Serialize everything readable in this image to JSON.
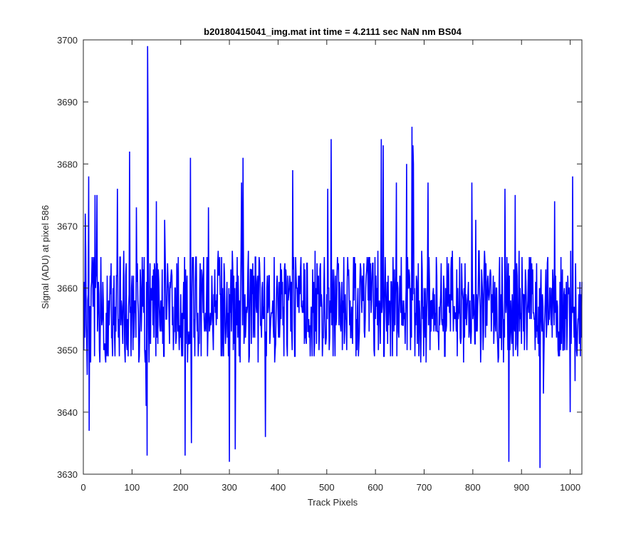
{
  "chart_data": {
    "type": "line",
    "title": "b20180415041_img.mat int time = 4.2111 sec  NaN nm BS04",
    "xlabel": "Track Pixels",
    "ylabel": "Signal (ADU) at pixel 586",
    "xlim": [
      0,
      1024
    ],
    "ylim": [
      3630,
      3700
    ],
    "xticks": [
      0,
      100,
      200,
      300,
      400,
      500,
      600,
      700,
      800,
      900,
      1000
    ],
    "yticks": [
      3630,
      3640,
      3650,
      3660,
      3670,
      3680,
      3690,
      3700
    ],
    "grid": false,
    "legend": "none",
    "line_color": "#0000ff",
    "series": [
      {
        "x_start": 1,
        "x_step": 1,
        "count": 1024,
        "mean": 3657,
        "spread": 5.5,
        "noise_seed": 586,
        "spikes": [
          {
            "x": 4,
            "y": 3672
          },
          {
            "x": 8,
            "y": 3646
          },
          {
            "x": 11,
            "y": 3678
          },
          {
            "x": 12,
            "y": 3637
          },
          {
            "x": 24,
            "y": 3675
          },
          {
            "x": 28,
            "y": 3675
          },
          {
            "x": 70,
            "y": 3676
          },
          {
            "x": 95,
            "y": 3682
          },
          {
            "x": 109,
            "y": 3673
          },
          {
            "x": 129,
            "y": 3641
          },
          {
            "x": 131,
            "y": 3633
          },
          {
            "x": 132,
            "y": 3699
          },
          {
            "x": 133,
            "y": 3685
          },
          {
            "x": 150,
            "y": 3674
          },
          {
            "x": 167,
            "y": 3671
          },
          {
            "x": 209,
            "y": 3633
          },
          {
            "x": 220,
            "y": 3681
          },
          {
            "x": 222,
            "y": 3635
          },
          {
            "x": 257,
            "y": 3673
          },
          {
            "x": 300,
            "y": 3632
          },
          {
            "x": 312,
            "y": 3634
          },
          {
            "x": 325,
            "y": 3677
          },
          {
            "x": 328,
            "y": 3681
          },
          {
            "x": 374,
            "y": 3636
          },
          {
            "x": 430,
            "y": 3679
          },
          {
            "x": 502,
            "y": 3676
          },
          {
            "x": 509,
            "y": 3684
          },
          {
            "x": 612,
            "y": 3684
          },
          {
            "x": 616,
            "y": 3683
          },
          {
            "x": 643,
            "y": 3677
          },
          {
            "x": 664,
            "y": 3680
          },
          {
            "x": 675,
            "y": 3686
          },
          {
            "x": 677,
            "y": 3683
          },
          {
            "x": 678,
            "y": 3680
          },
          {
            "x": 708,
            "y": 3677
          },
          {
            "x": 798,
            "y": 3677
          },
          {
            "x": 806,
            "y": 3671
          },
          {
            "x": 866,
            "y": 3676
          },
          {
            "x": 874,
            "y": 3632
          },
          {
            "x": 887,
            "y": 3675
          },
          {
            "x": 938,
            "y": 3631
          },
          {
            "x": 945,
            "y": 3643
          },
          {
            "x": 968,
            "y": 3674
          },
          {
            "x": 1000,
            "y": 3640
          },
          {
            "x": 1005,
            "y": 3678
          },
          {
            "x": 1010,
            "y": 3645
          }
        ]
      }
    ]
  }
}
